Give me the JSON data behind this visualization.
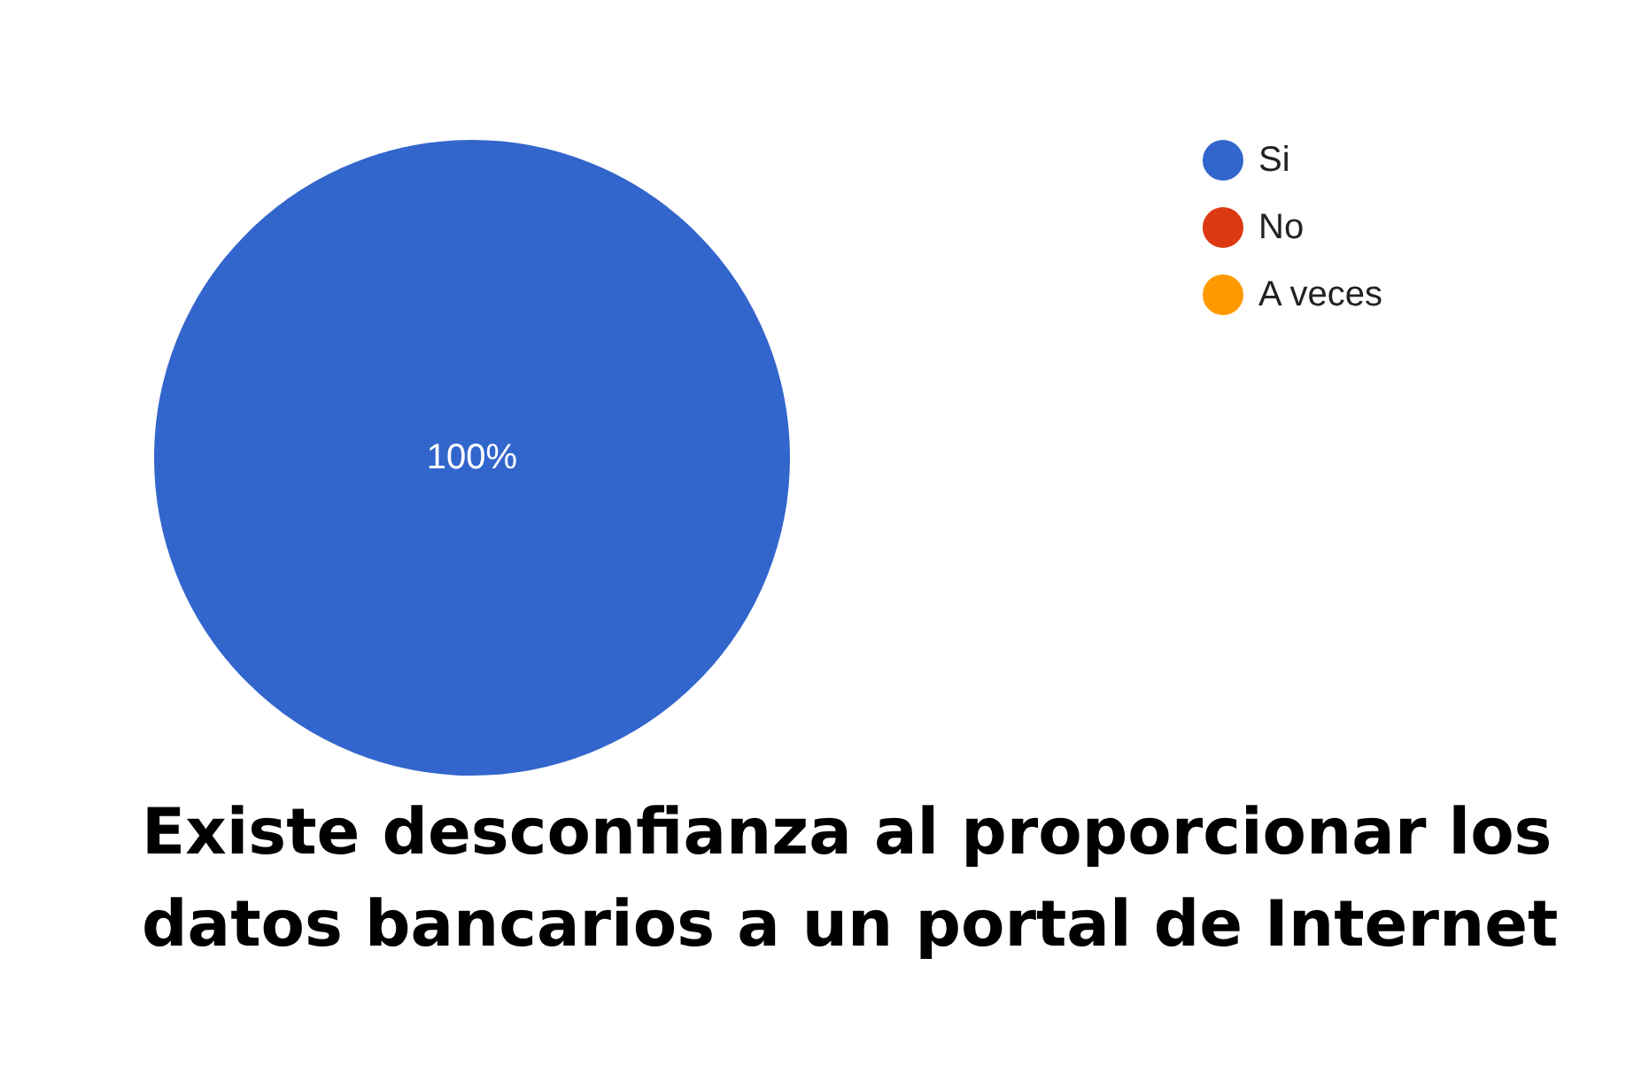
{
  "chart_data": {
    "type": "pie",
    "title": "Existe desconfianza al proporcionar los datos bancarios a un portal de Internet",
    "categories": [
      "Si",
      "No",
      "A veces"
    ],
    "values": [
      100,
      0,
      0
    ],
    "colors": [
      "#3366cc",
      "#dc3912",
      "#ff9900"
    ],
    "value_labels": [
      "100%",
      null,
      null
    ],
    "legend": "top right"
  }
}
